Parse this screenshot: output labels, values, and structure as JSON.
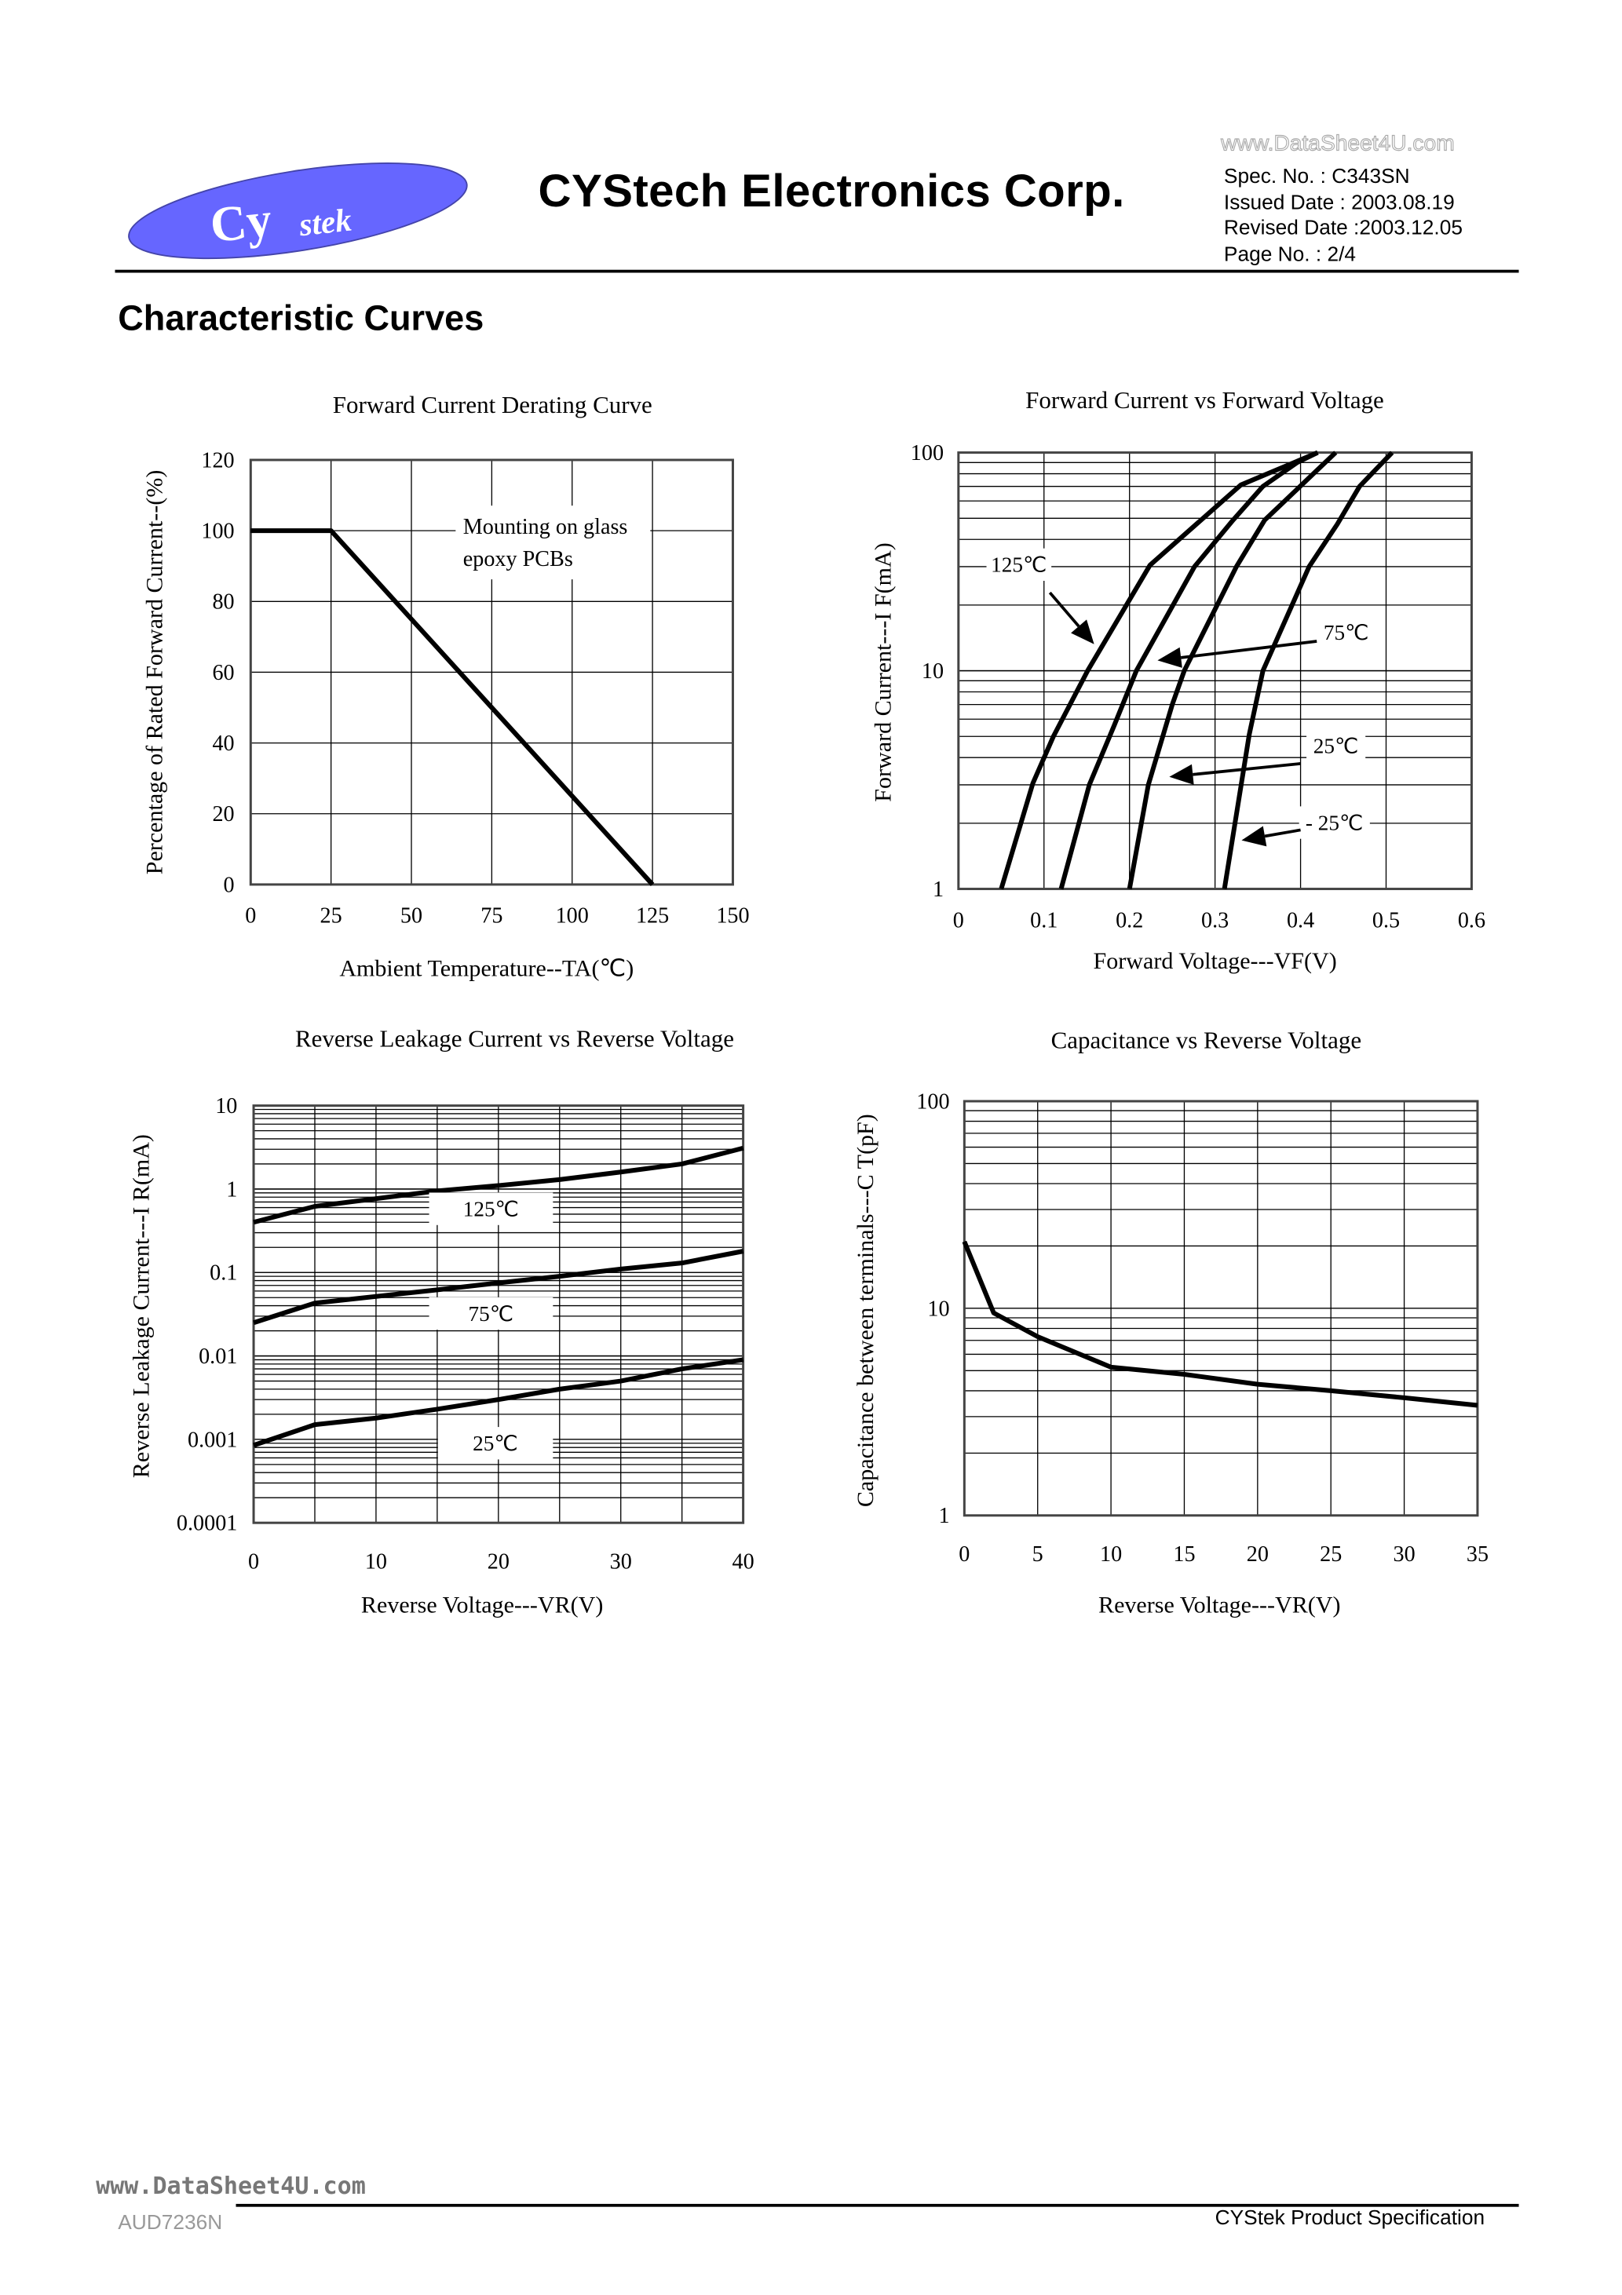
{
  "header": {
    "logo_text": "CyStek",
    "company": "CYStech Electronics Corp.",
    "watermark": "www.DataSheet4U.com",
    "spec_no": "Spec. No. : C343SN",
    "issued_date": "Issued Date : 2003.08.19",
    "revised_date": "Revised Date :2003.12.05",
    "page_no": "Page No. : 2/4"
  },
  "section_title": "Characteristic Curves",
  "footer": {
    "left": "AUD7236N",
    "watermark": "www.DataSheet4U.com",
    "right": "CYStek Product Specification"
  },
  "colors": {
    "logo": "#6666ff",
    "curve": "#000000",
    "grid": "#000000"
  },
  "chart_data": [
    {
      "type": "line",
      "title": "Forward Current Derating Curve",
      "xlabel": "Ambient Temperature--TA(℃)",
      "ylabel": "Percentage of Rated Forward Current--(%)",
      "xlim": [
        0,
        150
      ],
      "ylim": [
        0,
        120
      ],
      "xticks": [
        "0",
        "25",
        "50",
        "75",
        "100",
        "125",
        "150"
      ],
      "yticks": [
        "0",
        "20",
        "40",
        "60",
        "80",
        "100",
        "120"
      ],
      "yscale": "linear",
      "grid": true,
      "annotation": [
        "Mounting on glass",
        "epoxy PCBs"
      ],
      "series": [
        {
          "x": [
            0,
            25,
            125
          ],
          "y": [
            100,
            100,
            0
          ]
        }
      ]
    },
    {
      "type": "line",
      "title": "Forward Current vs Forward Voltage",
      "xlabel": "Forward Voltage---VF(V)",
      "ylabel": "Forward Current---I F(mA)",
      "xlim": [
        0,
        0.6
      ],
      "ylim": [
        1,
        100
      ],
      "xticks": [
        "0",
        "0.1",
        "0.2",
        "0.3",
        "0.4",
        "0.5",
        "0.6"
      ],
      "yticks": [
        "1",
        "10",
        "100"
      ],
      "yscale": "log",
      "grid": true,
      "series": [
        {
          "name": "125℃",
          "x": [
            0.05,
            0.087,
            0.111,
            0.151,
            0.224,
            0.33,
            0.42
          ],
          "y": [
            1,
            3.05,
            5,
            10,
            30.5,
            71,
            100
          ]
        },
        {
          "name": "75℃",
          "x": [
            0.12,
            0.153,
            0.182,
            0.208,
            0.276,
            0.321,
            0.356,
            0.396,
            0.42
          ],
          "y": [
            1,
            3,
            5.6,
            10,
            30,
            49,
            70,
            90,
            100
          ]
        },
        {
          "name": "25℃",
          "x": [
            0.2,
            0.222,
            0.25,
            0.264,
            0.325,
            0.358,
            0.441
          ],
          "y": [
            1,
            3,
            7,
            10,
            30,
            49,
            100
          ]
        },
        {
          "name": "- 25℃",
          "x": [
            0.311,
            0.34,
            0.356,
            0.41,
            0.443,
            0.469,
            0.507
          ],
          "y": [
            1,
            5.1,
            10,
            30,
            47,
            70,
            100
          ]
        }
      ]
    },
    {
      "type": "line",
      "title": "Reverse Leakage Current vs Reverse Voltage",
      "xlabel": "Reverse Voltage---VR(V)",
      "ylabel": "Reverse Leakage Current---I R(mA)",
      "xlim": [
        0,
        40
      ],
      "ylim": [
        0.0001,
        10
      ],
      "xticks": [
        "0",
        "10",
        "20",
        "30",
        "40"
      ],
      "yticks": [
        "0.0001",
        "0.001",
        "0.01",
        "0.1",
        "1",
        "10"
      ],
      "yscale": "log",
      "grid": true,
      "series": [
        {
          "name": "125℃",
          "x": [
            0,
            5,
            15,
            20,
            25,
            30,
            35,
            40
          ],
          "y": [
            0.4,
            0.62,
            0.95,
            1.1,
            1.3,
            1.6,
            2.0,
            3.1
          ]
        },
        {
          "name": "75℃",
          "x": [
            0,
            5,
            15,
            20,
            25,
            30,
            35,
            40
          ],
          "y": [
            0.025,
            0.043,
            0.062,
            0.075,
            0.09,
            0.11,
            0.13,
            0.18
          ]
        },
        {
          "name": "25℃",
          "x": [
            0,
            5,
            10,
            15,
            20,
            25,
            30,
            35,
            40
          ],
          "y": [
            0.00085,
            0.0015,
            0.0018,
            0.0023,
            0.003,
            0.004,
            0.005,
            0.007,
            0.009
          ]
        }
      ]
    },
    {
      "type": "line",
      "title": "Capacitance vs Reverse Voltage",
      "xlabel": "Reverse Voltage---VR(V)",
      "ylabel": "Capacitance between terminals---C T(pF)",
      "xlim": [
        0,
        35
      ],
      "ylim": [
        1,
        100
      ],
      "xticks": [
        "0",
        "5",
        "10",
        "15",
        "20",
        "25",
        "30",
        "35"
      ],
      "yticks": [
        "1",
        "10",
        "100"
      ],
      "yscale": "log",
      "grid": true,
      "series": [
        {
          "x": [
            0,
            2,
            5,
            10,
            15,
            20,
            25,
            30,
            35
          ],
          "y": [
            21,
            9.5,
            7.3,
            5.2,
            4.8,
            4.3,
            4.0,
            3.7,
            3.4
          ]
        }
      ]
    }
  ]
}
